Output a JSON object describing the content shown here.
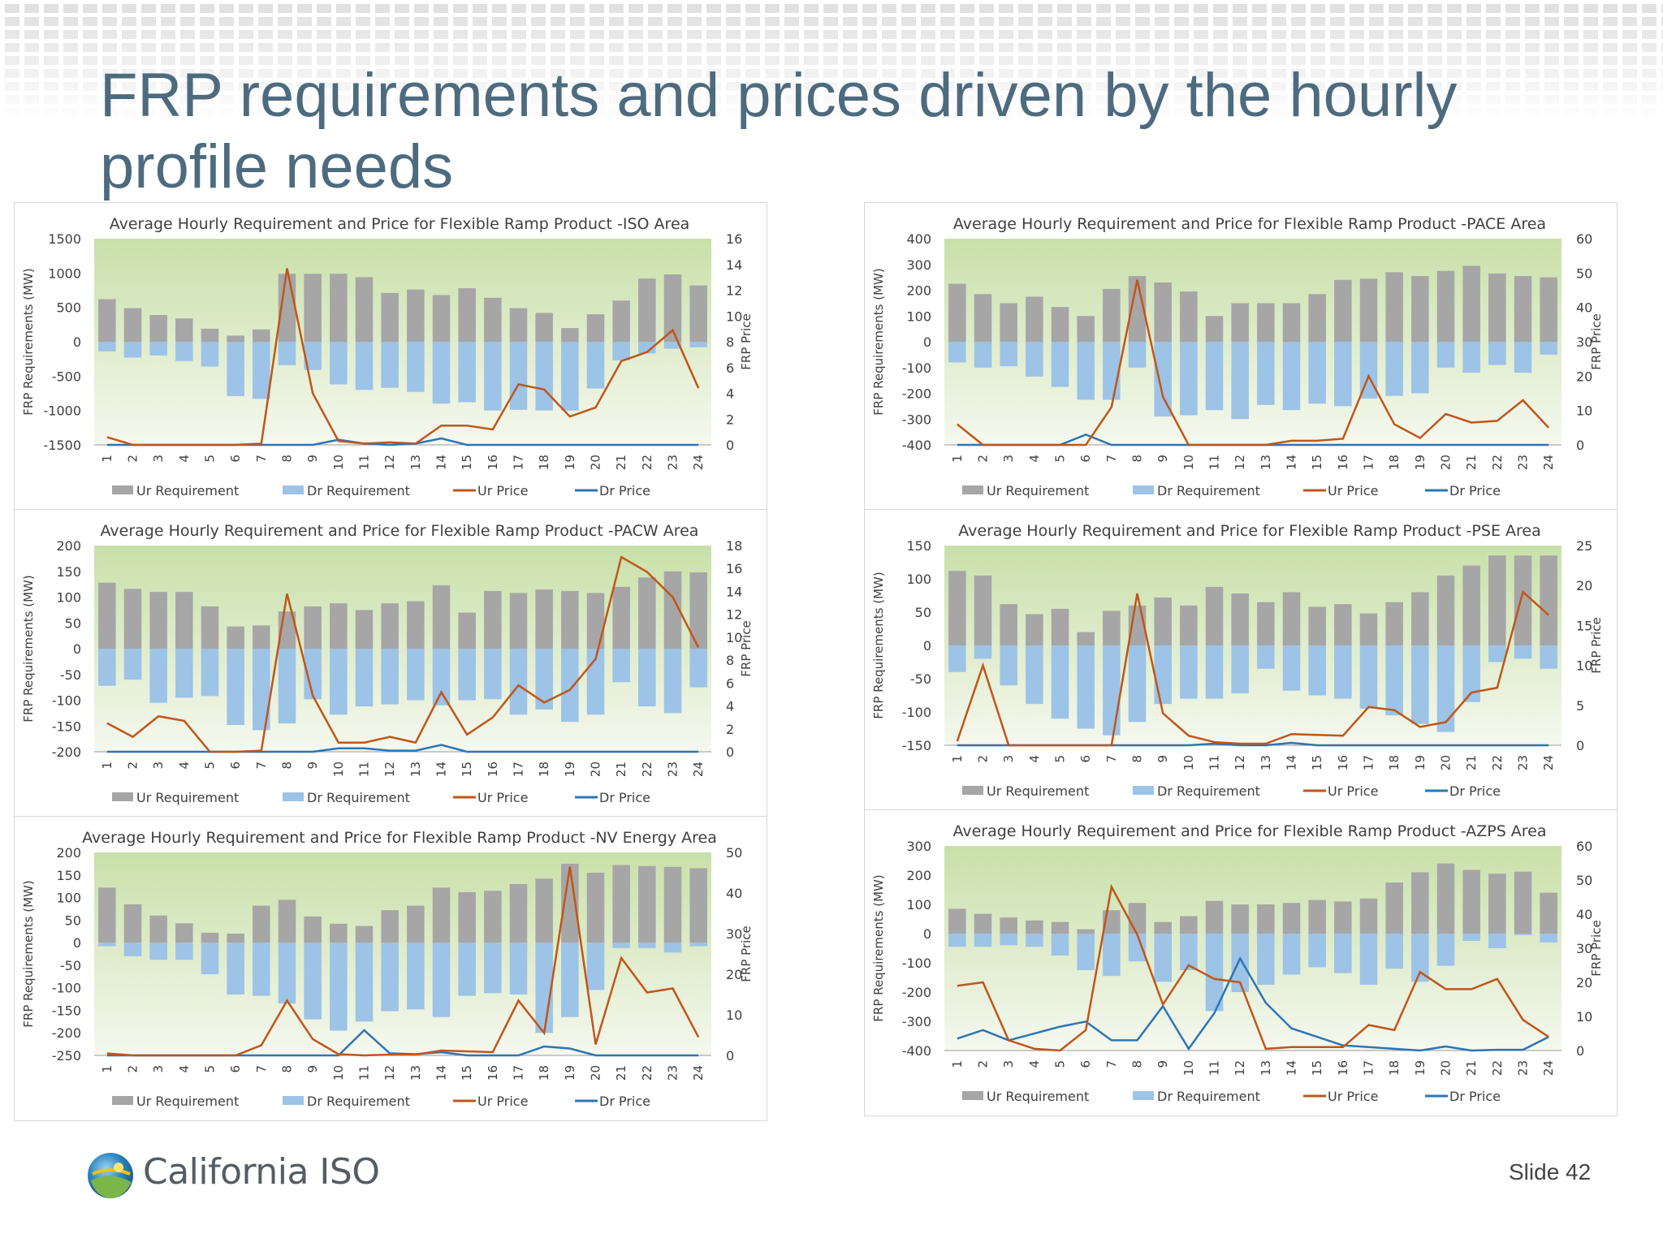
{
  "title": "FRP requirements and prices driven by the hourly profile needs",
  "footer": {
    "logo_text": "California ISO",
    "slide_label": "Slide 42"
  },
  "colors": {
    "ur_req": "#a6a6a6",
    "dr_req": "#9dc3e6",
    "ur_price": "#c0561b",
    "dr_price": "#2e75b6",
    "plot_bg_top": "#c9e0a9",
    "plot_bg_bottom": "#f5f8ef"
  },
  "chart_data": [
    {
      "id": "iso",
      "type": "bar",
      "title": "Average Hourly Requirement and Price for Flexible Ramp Product  -ISO Area",
      "ylabel": "FRP Requirements (MW)",
      "y2label": "FRP Price",
      "ylim": [
        -1500,
        1500
      ],
      "yticks": [
        1500,
        1000,
        500,
        0,
        -500,
        -1000,
        -1500
      ],
      "y2lim": [
        0,
        16
      ],
      "y2ticks": [
        16,
        14,
        12,
        10,
        8,
        6,
        4,
        2,
        0
      ],
      "categories": [
        "1",
        "2",
        "3",
        "4",
        "5",
        "6",
        "7",
        "8",
        "9",
        "10",
        "11",
        "12",
        "13",
        "14",
        "15",
        "16",
        "17",
        "18",
        "19",
        "20",
        "21",
        "22",
        "23",
        "24"
      ],
      "legend": [
        "Ur Requirement",
        "Dr Requirement",
        "Ur Price",
        "Dr Price"
      ],
      "series": [
        {
          "name": "Ur Requirement",
          "values": [
            620,
            490,
            390,
            340,
            190,
            90,
            180,
            990,
            990,
            990,
            940,
            710,
            760,
            680,
            780,
            640,
            490,
            420,
            200,
            400,
            600,
            920,
            980,
            820
          ]
        },
        {
          "name": "Dr Requirement",
          "values": [
            -140,
            -230,
            -200,
            -280,
            -360,
            -790,
            -830,
            -340,
            -410,
            -620,
            -700,
            -670,
            -730,
            -900,
            -880,
            -1000,
            -990,
            -1000,
            -1000,
            -680,
            -270,
            -170,
            -100,
            -80
          ]
        },
        {
          "name": "Ur Price",
          "values": [
            0.6,
            0,
            0,
            0,
            0,
            0,
            0.1,
            13.7,
            4.0,
            0.3,
            0.1,
            0.2,
            0.1,
            1.5,
            1.5,
            1.2,
            4.7,
            4.3,
            2.2,
            2.9,
            6.5,
            7.2,
            8.9,
            4.4
          ]
        },
        {
          "name": "Dr Price",
          "values": [
            0,
            0,
            0,
            0,
            0,
            0,
            0,
            0,
            0,
            0.4,
            0.1,
            0,
            0.1,
            0.5,
            0,
            0,
            0,
            0,
            0,
            0,
            0,
            0,
            0,
            0
          ]
        }
      ]
    },
    {
      "id": "pace",
      "type": "bar",
      "title": "Average Hourly Requirement and Price for Flexible Ramp Product  -PACE Area",
      "ylabel": "FRP Requirements (MW)",
      "y2label": "FRP Price",
      "ylim": [
        -400,
        400
      ],
      "yticks": [
        400,
        300,
        200,
        100,
        0,
        -100,
        -200,
        -300,
        -400
      ],
      "y2lim": [
        0,
        60
      ],
      "y2ticks": [
        60,
        50,
        40,
        30,
        20,
        10,
        0
      ],
      "categories": [
        "1",
        "2",
        "3",
        "4",
        "5",
        "6",
        "7",
        "8",
        "9",
        "10",
        "11",
        "12",
        "13",
        "14",
        "15",
        "16",
        "17",
        "18",
        "19",
        "20",
        "21",
        "22",
        "23",
        "24"
      ],
      "legend": [
        "Ur Requirement",
        "Dr Requirement",
        "Ur Price",
        "Dr Price"
      ],
      "series": [
        {
          "name": "Ur Requirement",
          "values": [
            225,
            185,
            150,
            175,
            135,
            100,
            205,
            255,
            230,
            195,
            100,
            150,
            150,
            150,
            185,
            240,
            245,
            270,
            255,
            275,
            295,
            265,
            255,
            250
          ]
        },
        {
          "name": "Dr Requirement",
          "values": [
            -80,
            -100,
            -95,
            -135,
            -175,
            -225,
            -225,
            -100,
            -290,
            -285,
            -265,
            -300,
            -245,
            -265,
            -240,
            -250,
            -220,
            -210,
            -200,
            -100,
            -120,
            -90,
            -120,
            -50
          ]
        },
        {
          "name": "Ur Price",
          "values": [
            6,
            0,
            0,
            0,
            0,
            0,
            11,
            48,
            14,
            0,
            0,
            0,
            0,
            1.2,
            1.2,
            1.8,
            20,
            6,
            2,
            9,
            6.5,
            7,
            13,
            5
          ]
        },
        {
          "name": "Dr Price",
          "values": [
            0,
            0,
            0,
            0,
            0,
            3,
            0,
            0,
            0,
            0,
            0,
            0,
            0,
            0,
            0,
            0,
            0,
            0,
            0,
            0,
            0,
            0,
            0,
            0
          ]
        }
      ]
    },
    {
      "id": "pacw",
      "type": "bar",
      "title": "Average Hourly Requirement and Price for Flexible Ramp Product  -PACW Area",
      "ylabel": "FRP Requirements (MW)",
      "y2label": "FRP Price",
      "ylim": [
        -200,
        200
      ],
      "yticks": [
        200,
        150,
        100,
        50,
        0,
        -50,
        -100,
        -150,
        -200
      ],
      "y2lim": [
        0,
        18
      ],
      "y2ticks": [
        18,
        16,
        14,
        12,
        10,
        8,
        6,
        4,
        2,
        0
      ],
      "categories": [
        "1",
        "2",
        "3",
        "4",
        "5",
        "6",
        "7",
        "8",
        "9",
        "10",
        "11",
        "12",
        "13",
        "14",
        "15",
        "16",
        "17",
        "18",
        "19",
        "20",
        "21",
        "22",
        "23",
        "24"
      ],
      "legend": [
        "Ur Requirement",
        "Dr Requirement",
        "Ur Price",
        "Dr Price"
      ],
      "series": [
        {
          "name": "Ur Requirement",
          "values": [
            128,
            116,
            110,
            110,
            82,
            43,
            45,
            72,
            82,
            88,
            75,
            88,
            92,
            123,
            70,
            112,
            108,
            115,
            112,
            108,
            120,
            138,
            150,
            148
          ]
        },
        {
          "name": "Dr Requirement",
          "values": [
            -72,
            -60,
            -105,
            -95,
            -92,
            -148,
            -158,
            -145,
            -98,
            -128,
            -112,
            -108,
            -100,
            -110,
            -100,
            -98,
            -128,
            -118,
            -142,
            -128,
            -65,
            -112,
            -125,
            -75
          ]
        },
        {
          "name": "Ur Price",
          "values": [
            2.5,
            1.3,
            3.1,
            2.7,
            0,
            0,
            0.1,
            13.8,
            4.9,
            0.8,
            0.8,
            1.3,
            0.8,
            5.2,
            1.5,
            3.0,
            5.8,
            4.3,
            5.4,
            8.1,
            17.0,
            15.7,
            13.5,
            9.1
          ]
        },
        {
          "name": "Dr Price",
          "values": [
            0,
            0,
            0,
            0,
            0,
            0,
            0,
            0,
            0,
            0.3,
            0.3,
            0.1,
            0.1,
            0.6,
            0,
            0,
            0,
            0,
            0,
            0,
            0,
            0,
            0,
            0
          ]
        }
      ]
    },
    {
      "id": "pse",
      "type": "bar",
      "title": "Average Hourly Requirement and Price for Flexible Ramp Product  -PSE Area",
      "ylabel": "FRP Requirements (MW)",
      "y2label": "FRP Price",
      "ylim": [
        -150,
        150
      ],
      "yticks": [
        150,
        100,
        50,
        0,
        -50,
        -100,
        -150
      ],
      "y2lim": [
        0,
        25
      ],
      "y2ticks": [
        25,
        20,
        15,
        10,
        5,
        0
      ],
      "categories": [
        "1",
        "2",
        "3",
        "4",
        "5",
        "6",
        "7",
        "8",
        "9",
        "10",
        "11",
        "12",
        "13",
        "14",
        "15",
        "16",
        "17",
        "18",
        "19",
        "20",
        "21",
        "22",
        "23",
        "24"
      ],
      "legend": [
        "Ur Requirement",
        "Dr Requirement",
        "Ur Price",
        "Dr Price"
      ],
      "series": [
        {
          "name": "Ur Requirement",
          "values": [
            112,
            105,
            62,
            47,
            55,
            20,
            52,
            60,
            72,
            60,
            88,
            78,
            65,
            80,
            58,
            62,
            48,
            65,
            80,
            105,
            120,
            135,
            135,
            135
          ]
        },
        {
          "name": "Dr Requirement",
          "values": [
            -40,
            -20,
            -60,
            -88,
            -110,
            -125,
            -135,
            -115,
            -88,
            -80,
            -80,
            -72,
            -35,
            -68,
            -75,
            -80,
            -95,
            -105,
            -118,
            -130,
            -85,
            -25,
            -20,
            -35
          ]
        },
        {
          "name": "Ur Price",
          "values": [
            0.5,
            10,
            0,
            0,
            0,
            0,
            0,
            19,
            4,
            1.2,
            0.4,
            0.2,
            0.2,
            1.4,
            1.3,
            1.2,
            4.8,
            4.4,
            2.3,
            2.9,
            6.6,
            7.2,
            19.2,
            16.3
          ]
        },
        {
          "name": "Dr Price",
          "values": [
            0,
            0,
            0,
            0,
            0,
            0,
            0,
            0,
            0,
            0,
            0.2,
            0,
            0,
            0.3,
            0,
            0,
            0,
            0,
            0,
            0,
            0,
            0,
            0,
            0
          ]
        }
      ]
    },
    {
      "id": "nv",
      "type": "bar",
      "title": "Average Hourly Requirement  and Price for Flexible Ramp Product  -NV Energy Area",
      "ylabel": "FRP Requirements (MW)",
      "y2label": "FRP Price",
      "ylim": [
        -250,
        200
      ],
      "yticks": [
        200,
        150,
        100,
        50,
        0,
        -50,
        -100,
        -150,
        -200,
        -250
      ],
      "y2lim": [
        0,
        50
      ],
      "y2ticks": [
        50,
        40,
        30,
        20,
        10,
        0
      ],
      "categories": [
        "1",
        "2",
        "3",
        "4",
        "5",
        "6",
        "7",
        "8",
        "9",
        "10",
        "11",
        "12",
        "13",
        "14",
        "15",
        "16",
        "17",
        "18",
        "19",
        "20",
        "21",
        "22",
        "23",
        "24"
      ],
      "legend": [
        "Ur Requirement",
        "Dr Requirement",
        "Ur Price",
        "Dr Price"
      ],
      "series": [
        {
          "name": "Ur Requirement",
          "values": [
            122,
            85,
            60,
            43,
            22,
            20,
            82,
            95,
            58,
            42,
            37,
            72,
            82,
            122,
            112,
            115,
            130,
            142,
            175,
            155,
            172,
            170,
            168,
            165
          ]
        },
        {
          "name": "Dr Requirement",
          "values": [
            -8,
            -30,
            -38,
            -38,
            -70,
            -115,
            -118,
            -135,
            -170,
            -195,
            -175,
            -152,
            -148,
            -165,
            -118,
            -112,
            -115,
            -200,
            -165,
            -105,
            -12,
            -12,
            -22,
            -8
          ]
        },
        {
          "name": "Ur Price",
          "values": [
            0.5,
            0,
            0,
            0,
            0,
            0,
            2.5,
            13.5,
            4,
            0.3,
            0,
            0.2,
            0.2,
            1.2,
            1,
            0.8,
            13.5,
            5.5,
            46.5,
            2.7,
            24,
            15.5,
            16.5,
            4.5
          ]
        },
        {
          "name": "Dr Price",
          "values": [
            0,
            0,
            0,
            0,
            0,
            0,
            0,
            0,
            0,
            0,
            6.2,
            0.5,
            0.3,
            0.8,
            0,
            0,
            0,
            2.2,
            1.7,
            0,
            0,
            0,
            0,
            0
          ]
        }
      ]
    },
    {
      "id": "azps",
      "type": "bar",
      "title": "Average Hourly Requirement and Price for Flexible Ramp Product  -AZPS Area",
      "ylabel": "FRP Requirements (MW)",
      "y2label": "FRP Price",
      "ylim": [
        -400,
        300
      ],
      "yticks": [
        300,
        200,
        100,
        0,
        -100,
        -200,
        -300,
        -400
      ],
      "y2lim": [
        0,
        60
      ],
      "y2ticks": [
        60,
        50,
        40,
        30,
        20,
        10,
        0
      ],
      "categories": [
        "1",
        "2",
        "3",
        "4",
        "5",
        "6",
        "7",
        "8",
        "9",
        "10",
        "11",
        "12",
        "13",
        "14",
        "15",
        "16",
        "17",
        "18",
        "19",
        "20",
        "21",
        "22",
        "23",
        "24"
      ],
      "legend": [
        "Ur Requirement",
        "Dr Requirement",
        "Ur Price",
        "Dr Price"
      ],
      "series": [
        {
          "name": "Ur Requirement",
          "values": [
            85,
            68,
            55,
            45,
            40,
            15,
            80,
            105,
            40,
            60,
            112,
            100,
            100,
            105,
            115,
            110,
            120,
            175,
            210,
            240,
            218,
            205,
            212,
            140
          ]
        },
        {
          "name": "Dr Requirement",
          "values": [
            -45,
            -45,
            -40,
            -45,
            -75,
            -125,
            -145,
            -95,
            -165,
            -125,
            -265,
            -200,
            -175,
            -140,
            -115,
            -135,
            -175,
            -120,
            -165,
            -110,
            -25,
            -50,
            -5,
            -30
          ]
        },
        {
          "name": "Ur Price",
          "values": [
            19,
            20,
            3,
            0.5,
            0,
            6,
            48,
            34,
            13.5,
            25,
            21,
            20,
            0.5,
            1,
            1,
            1,
            7.5,
            6,
            23,
            18,
            18,
            21,
            9,
            4
          ]
        },
        {
          "name": "Dr Price",
          "values": [
            3.5,
            6,
            3,
            5,
            7,
            8.5,
            3,
            3,
            13,
            0.5,
            11,
            27,
            14,
            6.5,
            4,
            1.5,
            1,
            0.5,
            0,
            1.2,
            0,
            0.2,
            0.2,
            4
          ]
        }
      ]
    }
  ]
}
